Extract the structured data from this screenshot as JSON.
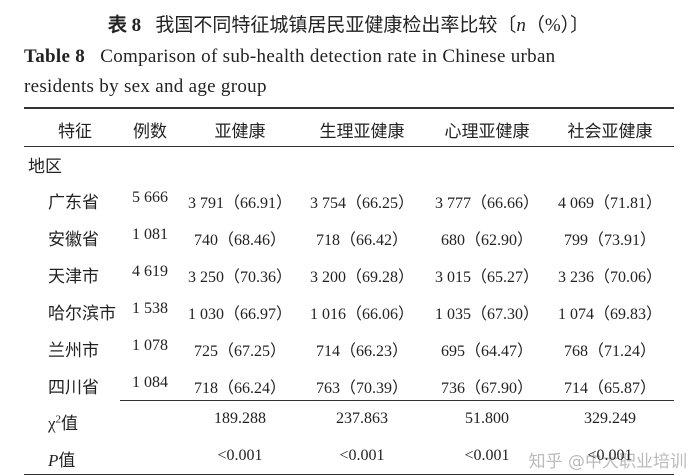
{
  "title_cn": {
    "label": "表 8",
    "pre": "我国不同特征城镇居民亚健康检出率比较〔",
    "n": "n",
    "post": "（%）〕"
  },
  "title_en": {
    "label": "Table 8",
    "line1": "Comparison of sub-health detection rate in Chinese urban",
    "line2": "residents by sex and age group"
  },
  "table": {
    "headers": [
      "特征",
      "例数",
      "亚健康",
      "生理亚健康",
      "心理亚健康",
      "社会亚健康"
    ],
    "group": "地区",
    "rows": [
      [
        "广东省",
        "5 666",
        "3 791（66.91）",
        "3 754（66.25）",
        "3 777（66.66）",
        "4 069（71.81）"
      ],
      [
        "安徽省",
        "1 081",
        "740（68.46）",
        "718（66.42）",
        "680（62.90）",
        "799（73.91）"
      ],
      [
        "天津市",
        "4 619",
        "3 250（70.36）",
        "3 200（69.28）",
        "3 015（65.27）",
        "3 236（70.06）"
      ],
      [
        "哈尔滨市",
        "1 538",
        "1 030（66.97）",
        "1 016（66.06）",
        "1 035（67.30）",
        "1 074（69.83）"
      ],
      [
        "兰州市",
        "1 078",
        "725（67.25）",
        "714（66.23）",
        "695（64.47）",
        "768（71.24）"
      ],
      [
        "四川省",
        "1 084",
        "718（66.24）",
        "763（70.39）",
        "736（67.90）",
        "714（65.87）"
      ]
    ],
    "chi": {
      "symbol": "χ",
      "sup": "2",
      "text": "值",
      "values": [
        "189.288",
        "237.863",
        "51.800",
        "329.249"
      ]
    },
    "p": {
      "symbol": "P",
      "text": "值",
      "values": [
        "<0.001",
        "<0.001",
        "<0.001",
        "<0.001"
      ]
    }
  },
  "watermark": "知乎 @中大职业培训"
}
